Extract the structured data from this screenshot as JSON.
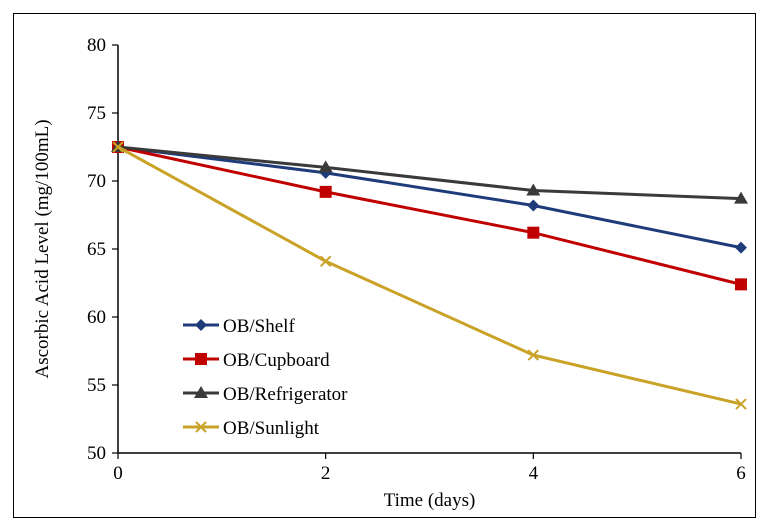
{
  "chart_data": {
    "type": "line",
    "xlabel": "Time (days)",
    "ylabel": "Ascorbic Acid Level (mg/100mL)",
    "xlim": [
      0,
      6
    ],
    "ylim": [
      50,
      80
    ],
    "x_ticks": [
      0,
      2,
      4,
      6
    ],
    "y_ticks": [
      50,
      55,
      60,
      65,
      70,
      75,
      80
    ],
    "x": [
      0,
      2,
      4,
      6
    ],
    "grid": false,
    "legend_position": "bottom-left",
    "series": [
      {
        "name": "OB/Shelf",
        "values": [
          72.5,
          70.6,
          68.2,
          65.1
        ],
        "color": "#1f3c7a",
        "marker": "diamond"
      },
      {
        "name": "OB/Cupboard",
        "values": [
          72.5,
          69.2,
          66.2,
          62.4
        ],
        "color": "#c00000",
        "marker": "square"
      },
      {
        "name": "OB/Refrigerator",
        "values": [
          72.5,
          71.0,
          69.3,
          68.7
        ],
        "color": "#3a3a3a",
        "marker": "triangle"
      },
      {
        "name": "OB/Sunlight",
        "values": [
          72.5,
          64.1,
          57.2,
          53.6
        ],
        "color": "#c9a227",
        "marker": "x"
      }
    ]
  }
}
